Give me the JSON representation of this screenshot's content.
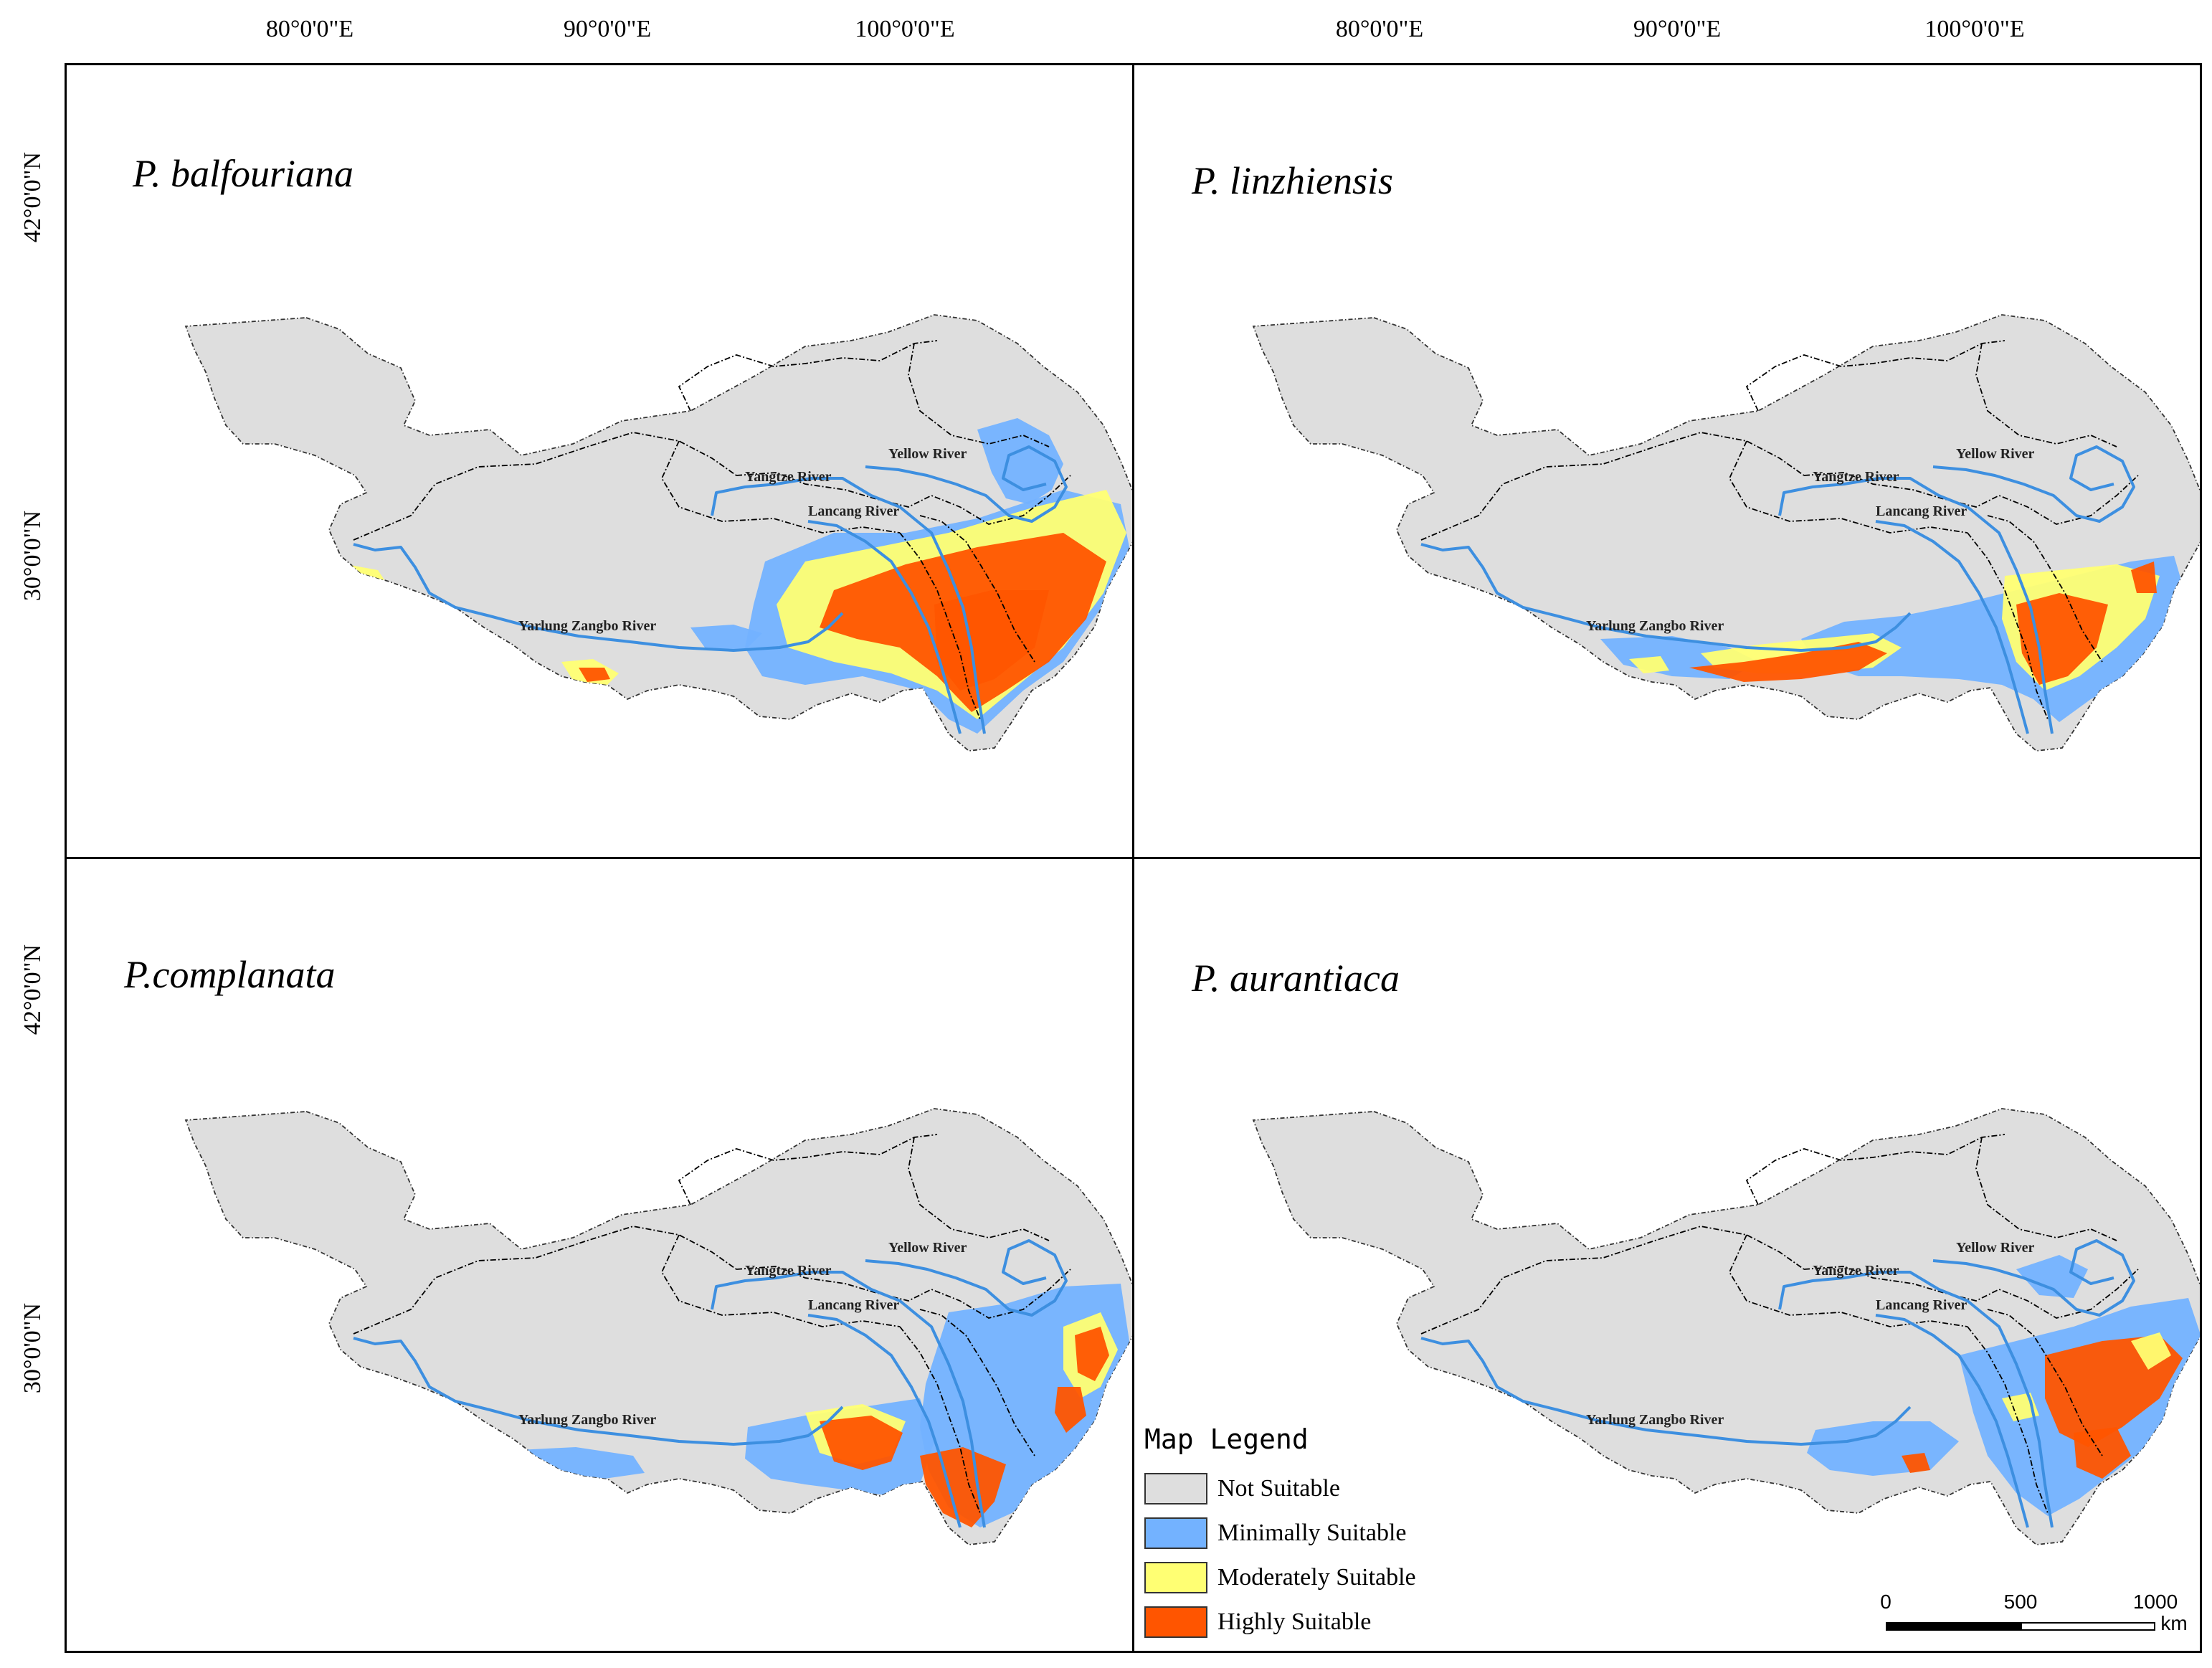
{
  "axes": {
    "longitude_labels": [
      "80°0'0\"E",
      "90°0'0\"E",
      "100°0'0\"E"
    ],
    "latitude_labels": [
      "42°0'0\"N",
      "30°0'0\"N"
    ]
  },
  "panels": [
    {
      "species": "P. balfouriana"
    },
    {
      "species": "P. linzhiensis"
    },
    {
      "species": "P.complanata"
    },
    {
      "species": "P. aurantiaca"
    }
  ],
  "rivers": {
    "yellow": "Yellow River",
    "yangtze": "Yangtze River",
    "lancang": "Lancang River",
    "yarlung": "Yarlung Zangbo River"
  },
  "legend": {
    "title": "Map Legend",
    "items": [
      {
        "label": "Not Suitable",
        "color": "#dedede"
      },
      {
        "label": "Minimally Suitable",
        "color": "#73b2ff"
      },
      {
        "label": "Moderately Suitable",
        "color": "#ffff73"
      },
      {
        "label": "Highly Suitable",
        "color": "#ff5500"
      }
    ]
  },
  "scale_bar": {
    "ticks": [
      "0",
      "500",
      "1000"
    ],
    "unit": "km"
  },
  "colors": {
    "river": "#3d8fe0",
    "boundary": "#000000"
  }
}
